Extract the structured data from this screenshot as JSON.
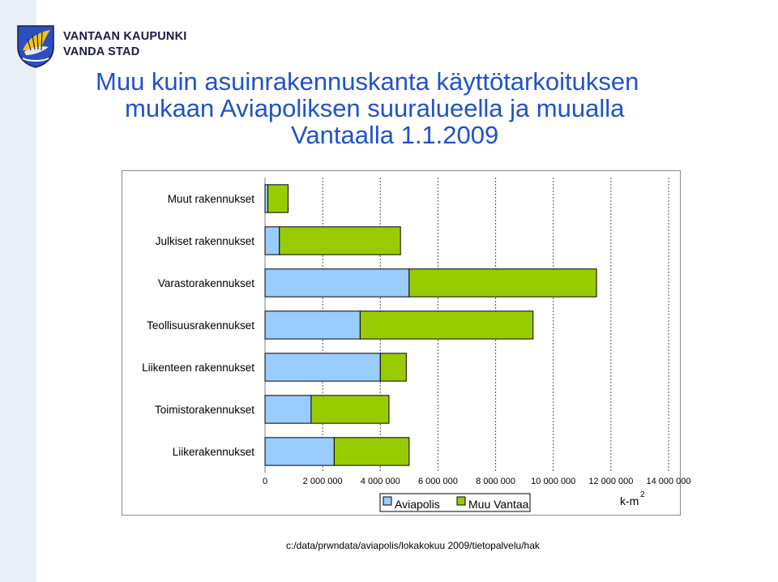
{
  "brand": {
    "line1": "VANTAAN KAUPUNKI",
    "line2": "VANDA STAD"
  },
  "title": {
    "line1": "Muu kuin asuinrakennuskanta käyttötarkoituksen",
    "line2": "mukaan Aviapoliksen suuralueella ja muualla",
    "line3": "Vantaalla 1.1.2009"
  },
  "footer": "c:/data/prwndata/aviapolis/lokakokuu 2009/tietopalvelu/hak",
  "colors": {
    "title": "#1f53c9",
    "aviapolis": "#99ccff",
    "muu_vantaa": "#99cc00",
    "band": "#e8eff6"
  },
  "chart_data": {
    "type": "bar",
    "orientation": "horizontal",
    "stacked": true,
    "categories": [
      "Muut rakennukset",
      "Julkiset rakennukset",
      "Varastorakennukset",
      "Teollisuusrakennukset",
      "Liikenteen rakennukset",
      "Toimistorakennukset",
      "Liikerakennukset"
    ],
    "series": [
      {
        "name": "Aviapolis",
        "values": [
          100000,
          500000,
          5000000,
          3300000,
          4000000,
          1600000,
          2400000
        ]
      },
      {
        "name": "Muu Vantaa",
        "values": [
          700000,
          4200000,
          6500000,
          6000000,
          900000,
          2700000,
          2600000
        ]
      }
    ],
    "xlim": [
      0,
      14000000
    ],
    "xticks": [
      "0",
      "2 000 000",
      "4 000 000",
      "6 000 000",
      "8 000 000",
      "10 000 000",
      "12 000 000",
      "14 000 000"
    ],
    "xlabel": "k-m",
    "xlabel_sup": "2",
    "grid": "vertical dashed",
    "legend": "bottom"
  }
}
